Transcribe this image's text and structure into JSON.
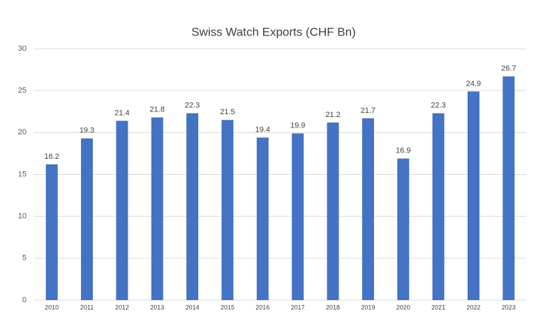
{
  "chart_data": {
    "type": "bar",
    "title": "Swiss Watch Exports (CHF Bn)",
    "categories": [
      "2010",
      "2011",
      "2012",
      "2013",
      "2014",
      "2015",
      "2016",
      "2017",
      "2018",
      "2019",
      "2020",
      "2021",
      "2022",
      "2023"
    ],
    "values": [
      16.2,
      19.3,
      21.4,
      21.8,
      22.3,
      21.5,
      19.4,
      19.9,
      21.2,
      21.7,
      16.9,
      22.3,
      24.9,
      26.7
    ],
    "color": "#4472c4",
    "ylim": [
      0,
      30
    ],
    "yticks": [
      0,
      5,
      10,
      15,
      20,
      25,
      30
    ],
    "grid": true
  }
}
